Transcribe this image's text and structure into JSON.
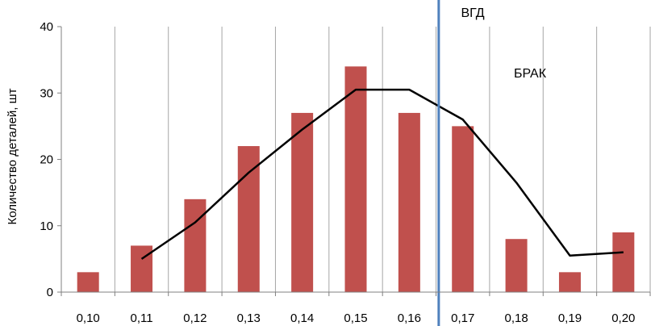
{
  "chart_data": {
    "type": "bar",
    "ylabel": "Количество деталей, шт",
    "xlabel": "",
    "ylim": [
      0,
      40
    ],
    "yticks": [
      0,
      10,
      20,
      30,
      40
    ],
    "grid": "vertical",
    "categories": [
      "0,10",
      "0,11",
      "0,12",
      "0,13",
      "0,14",
      "0,15",
      "0,16",
      "0,17",
      "0,18",
      "0,19",
      "0,20"
    ],
    "series": [
      {
        "type": "bar",
        "values": [
          3,
          7,
          14,
          22,
          27,
          34,
          27,
          25,
          8,
          3,
          9
        ],
        "color": "#c0504d"
      },
      {
        "type": "line",
        "values": [
          null,
          5,
          10.5,
          18,
          24.5,
          30.5,
          30.5,
          26,
          16.5,
          5.5,
          6
        ],
        "color": "#000000"
      }
    ],
    "threshold": {
      "label": "ВГД",
      "x": 0.1655,
      "color": "#4f81bd"
    },
    "region_label": "БРАК",
    "colors": {
      "bar": "#c0504d",
      "line": "#000000",
      "threshold": "#4f81bd",
      "grid": "#a6a6a6"
    }
  }
}
